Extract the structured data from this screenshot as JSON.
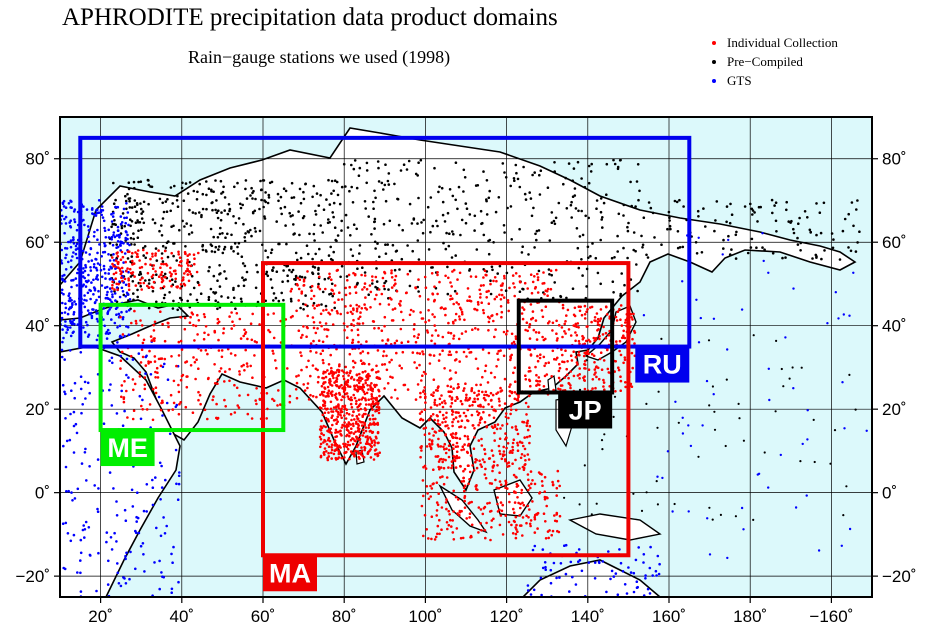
{
  "header": {
    "title": "APHRODITE precipitation data product domains",
    "subtitle": "Rain−gauge stations we used (1998)"
  },
  "legend": {
    "items": [
      {
        "label": "Individual Collection",
        "color": "#ff0000",
        "name": "legend-item-individual-collection"
      },
      {
        "label": "Pre−Compiled",
        "color": "#000000",
        "name": "legend-item-pre-compiled"
      },
      {
        "label": "GTS",
        "color": "#0000ff",
        "name": "legend-item-gts"
      }
    ]
  },
  "map": {
    "ocean_color": "#dcf9fb",
    "land_color": "#ffffff",
    "lon_ticks": [
      {
        "lon": 20,
        "label": "20˚"
      },
      {
        "lon": 40,
        "label": "40˚"
      },
      {
        "lon": 60,
        "label": "60˚"
      },
      {
        "lon": 80,
        "label": "80˚"
      },
      {
        "lon": 100,
        "label": "100˚"
      },
      {
        "lon": 120,
        "label": "120˚"
      },
      {
        "lon": 140,
        "label": "140˚"
      },
      {
        "lon": 160,
        "label": "160˚"
      },
      {
        "lon": 180,
        "label": "180˚"
      },
      {
        "lon": 200,
        "label": "−160˚"
      }
    ],
    "lat_ticks": [
      {
        "lat": 80,
        "label": "80˚"
      },
      {
        "lat": 60,
        "label": "60˚"
      },
      {
        "lat": 40,
        "label": "40˚"
      },
      {
        "lat": 20,
        "label": "20˚"
      },
      {
        "lat": 0,
        "label": "0˚"
      },
      {
        "lat": -20,
        "label": "−20˚"
      }
    ],
    "domains": [
      {
        "label": "RU",
        "color": "#0000ee",
        "lon": [
          15,
          165
        ],
        "lat": [
          35,
          85
        ],
        "label_anchor": "bottom-right"
      },
      {
        "label": "MA",
        "color": "#ee0000",
        "lon": [
          60,
          150
        ],
        "lat": [
          -15,
          55
        ],
        "label_anchor": "bottom-left"
      },
      {
        "label": "ME",
        "color": "#00ee00",
        "lon": [
          20,
          65
        ],
        "lat": [
          15,
          45
        ],
        "label_anchor": "bottom-left"
      },
      {
        "label": "JP",
        "color": "#000000",
        "lon": [
          123,
          146
        ],
        "lat": [
          24,
          46
        ],
        "label_anchor": "bottom-right"
      }
    ]
  }
}
